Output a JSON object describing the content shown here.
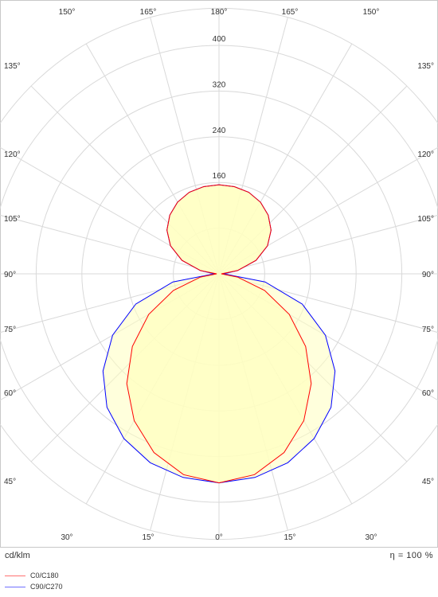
{
  "chart_data": {
    "type": "polar",
    "unit_label": "cd/klm",
    "efficiency_label": "η = 100 %",
    "radial_ticks": [
      80,
      160,
      240,
      320,
      400
    ],
    "radial_tick_labels": [
      "160",
      "240",
      "320",
      "400"
    ],
    "rmax": 465,
    "angle_labels": {
      "bottom": [
        "30°",
        "15°",
        "0°",
        "15°",
        "30°"
      ],
      "top": [
        "150°",
        "165°",
        "180°",
        "165°",
        "150°"
      ],
      "left": [
        "135°",
        "120°",
        "105°",
        "90°",
        "75°",
        "60°",
        "45°"
      ],
      "right": [
        "135°",
        "120°",
        "105°",
        "90°",
        "75°",
        "60°",
        "45°"
      ]
    },
    "colors": {
      "grid": "#d9d9d9",
      "fill": "#ffffc0",
      "c0": "#ff0000",
      "c90": "#0000ff"
    },
    "series": [
      {
        "name": "C0/C180",
        "gamma": [
          0,
          10,
          20,
          30,
          40,
          50,
          60,
          70,
          80,
          90,
          100,
          110,
          120,
          130,
          140,
          150,
          160,
          170,
          180
        ],
        "intensity": [
          366,
          357,
          333,
          297,
          251,
          198,
          142,
          85,
          33,
          4,
          33,
          69,
          98,
          119,
          134,
          145,
          152,
          155,
          156
        ]
      },
      {
        "name": "C90/C270",
        "gamma": [
          0,
          10,
          20,
          30,
          40,
          50,
          60,
          70,
          80,
          90,
          100,
          110,
          120,
          130,
          140,
          150,
          160,
          170,
          180
        ],
        "intensity": [
          366,
          362,
          352,
          333,
          305,
          265,
          215,
          155,
          82,
          8,
          33,
          69,
          98,
          119,
          134,
          145,
          152,
          155,
          156
        ]
      }
    ]
  }
}
